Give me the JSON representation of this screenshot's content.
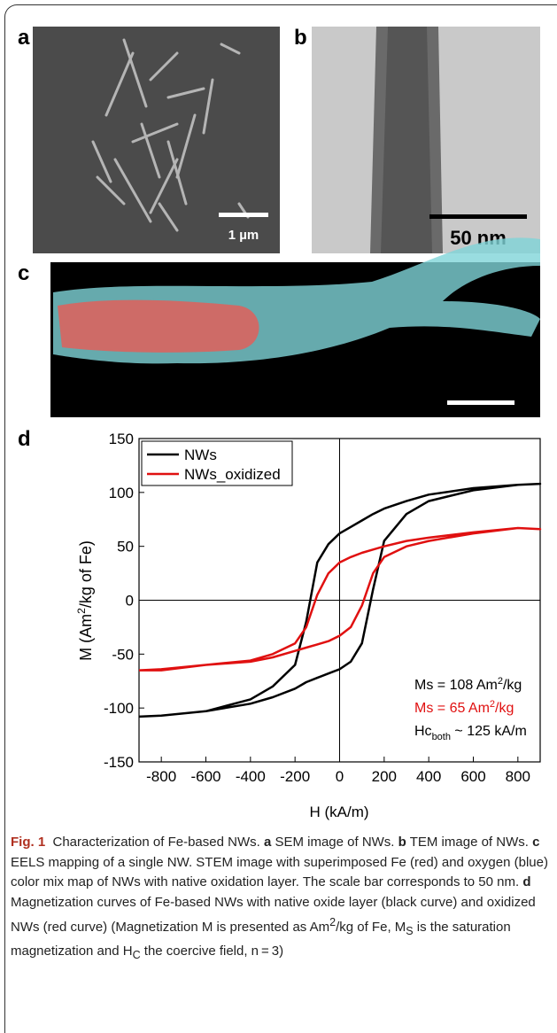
{
  "figure": {
    "panels": [
      "a",
      "b",
      "c",
      "d"
    ],
    "scale_bars": [
      "1 µm",
      "50 nm"
    ]
  },
  "chart_data": {
    "type": "line",
    "x_label": "H (kA/m)",
    "y_label": [
      "M (Am",
      "2",
      "/kg of Fe)"
    ],
    "x": [
      -900,
      -800,
      -600,
      -400,
      -300,
      -200,
      -150,
      -100,
      -50,
      0,
      50,
      100,
      150,
      200,
      300,
      400,
      600,
      800,
      900,
      800,
      600,
      400,
      300,
      200,
      150,
      100,
      50,
      0,
      -50,
      -100,
      -150,
      -200,
      -300,
      -400,
      -600,
      -800,
      -900
    ],
    "series": [
      {
        "name": "NWs",
        "color": "#000000",
        "values": [
          -108,
          -107,
          -103,
          -96,
          -90,
          -82,
          -76,
          -72,
          -68,
          -64,
          -57,
          -40,
          10,
          55,
          80,
          92,
          102,
          107,
          108,
          107,
          104,
          98,
          92,
          85,
          80,
          74,
          68,
          62,
          52,
          35,
          -20,
          -60,
          -80,
          -92,
          -103,
          -107,
          -108
        ]
      },
      {
        "name": "NWs_oxidized",
        "color": "#e01010",
        "values": [
          -65,
          -65,
          -60,
          -57,
          -53,
          -47,
          -44,
          -41,
          -38,
          -33,
          -25,
          -5,
          25,
          40,
          50,
          55,
          62,
          67,
          66,
          67,
          63,
          58,
          55,
          50,
          47,
          44,
          40,
          35,
          25,
          5,
          -25,
          -40,
          -50,
          -56,
          -60,
          -64,
          -65
        ]
      }
    ],
    "xlim": [
      -900,
      900
    ],
    "xticks": [
      -800,
      -600,
      -400,
      -200,
      0,
      200,
      400,
      600,
      800
    ],
    "ylim": [
      -150,
      150
    ],
    "yticks": [
      -150,
      -100,
      -50,
      0,
      50,
      100,
      150
    ],
    "legend": "upper left",
    "annotations": [
      [
        "Ms = 108 Am",
        "2",
        "/kg"
      ],
      [
        "Ms = 65 Am",
        "2",
        "/kg"
      ],
      [
        "Hc",
        "both",
        " ~ 125 kA/m"
      ]
    ]
  },
  "caption": {
    "parts": [
      "Fig. 1",
      "  Characterization of Fe-based NWs. ",
      "a",
      " SEM image of NWs. ",
      "b",
      " TEM image of NWs. ",
      "c",
      " EELS mapping of a single NW. STEM image with superimposed Fe (red) and oxygen (blue) color mix map of NWs with native oxidation layer. The scale bar corresponds to 50 nm. ",
      "d",
      " Magnetization curves of Fe-based NWs with native oxide layer (black curve) and oxidized NWs (red curve) (Magnetization M is presented as Am",
      "2",
      "/kg of Fe, M",
      "S",
      " is the saturation magnetization and H",
      "C",
      " the coercive field, n = 3)"
    ]
  }
}
